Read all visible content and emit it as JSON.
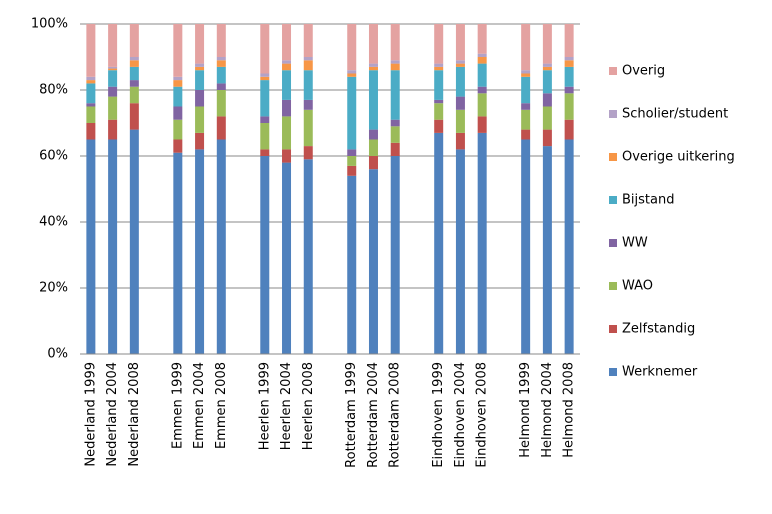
{
  "chart_data": {
    "type": "stacked-bar",
    "categories": [
      "Nederland 1999",
      "Nederland 2004",
      "Nederland 2008",
      null,
      "Emmen 1999",
      "Emmen 2004",
      "Emmen 2008",
      null,
      "Heerlen 1999",
      "Heerlen 2004",
      "Heerlen 2008",
      null,
      "Rotterdam 1999",
      "Rotterdam 2004",
      "Rotterdam 2008",
      null,
      "Eindhoven 1999",
      "Eindhoven 2004",
      "Eindhoven 2008",
      null,
      "Helmond 1999",
      "Helmond 2004",
      "Helmond 2008"
    ],
    "series": [
      {
        "name": "Werknemer",
        "color": "#4f81bd",
        "values": [
          65,
          65,
          68,
          null,
          61,
          62,
          65,
          null,
          60,
          58,
          59,
          null,
          54,
          56,
          60,
          null,
          67,
          62,
          67,
          null,
          65,
          63,
          65
        ]
      },
      {
        "name": "Zelfstandig",
        "color": "#c0504d",
        "values": [
          5,
          6,
          8,
          null,
          4,
          5,
          7,
          null,
          2,
          4,
          4,
          null,
          3,
          4,
          4,
          null,
          4,
          5,
          5,
          null,
          3,
          5,
          6
        ]
      },
      {
        "name": "WAO",
        "color": "#9bbb59",
        "values": [
          5,
          7,
          5,
          null,
          6,
          8,
          8,
          null,
          8,
          10,
          11,
          null,
          3,
          5,
          5,
          null,
          5,
          7,
          7,
          null,
          6,
          7,
          8
        ]
      },
      {
        "name": "WW",
        "color": "#8064a2",
        "values": [
          1,
          3,
          2,
          null,
          4,
          5,
          2,
          null,
          2,
          5,
          3,
          null,
          2,
          3,
          2,
          null,
          1,
          4,
          2,
          null,
          2,
          4,
          2
        ]
      },
      {
        "name": "Bijstand",
        "color": "#4bacc6",
        "values": [
          6,
          5,
          4,
          null,
          6,
          6,
          5,
          null,
          11,
          9,
          9,
          null,
          22,
          18,
          15,
          null,
          9,
          9,
          7,
          null,
          8,
          7,
          6
        ]
      },
      {
        "name": "Overige uitkering",
        "color": "#f79646",
        "values": [
          1,
          0.5,
          2,
          null,
          2,
          1,
          2,
          null,
          1,
          2,
          3,
          null,
          1,
          1,
          2,
          null,
          1,
          1,
          2,
          null,
          1,
          1,
          2
        ]
      },
      {
        "name": "Scholier/student",
        "color": "#b3a2c7",
        "values": [
          1,
          0.5,
          1,
          null,
          1,
          1,
          1,
          null,
          1,
          1,
          1,
          null,
          1,
          1,
          1,
          null,
          1,
          1,
          1,
          null,
          1,
          1,
          1
        ]
      },
      {
        "name": "Overig",
        "color": "#e4a2a1",
        "values": [
          16,
          13,
          10,
          null,
          16,
          12,
          10,
          null,
          15,
          11,
          10,
          null,
          14,
          12,
          11,
          null,
          12,
          11,
          9,
          null,
          14,
          12,
          10
        ]
      }
    ],
    "ylim": [
      0,
      100
    ],
    "yticks": [
      {
        "value": 0,
        "label": "0%"
      },
      {
        "value": 20,
        "label": "20%"
      },
      {
        "value": 40,
        "label": "40%"
      },
      {
        "value": 60,
        "label": "60%"
      },
      {
        "value": 80,
        "label": "80%"
      },
      {
        "value": 100,
        "label": "100%"
      }
    ],
    "grid": true
  }
}
